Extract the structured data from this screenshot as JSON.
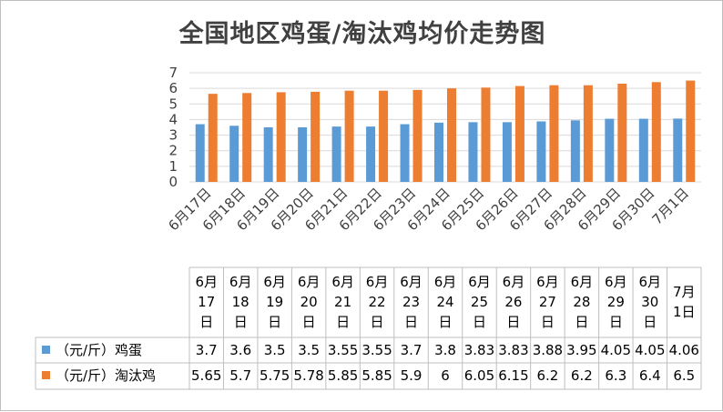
{
  "chart_data": {
    "type": "bar",
    "title": "全国地区鸡蛋/淘汰鸡均价走势图",
    "ylim": [
      0,
      7
    ],
    "yticks": [
      0,
      1,
      2,
      3,
      4,
      5,
      6,
      7
    ],
    "grid": true,
    "legend": "bottom-table",
    "categories": [
      "6月17日",
      "6月18日",
      "6月19日",
      "6月20日",
      "6月21日",
      "6月22日",
      "6月23日",
      "6月24日",
      "6月25日",
      "6月26日",
      "6月27日",
      "6月28日",
      "6月29日",
      "6月30日",
      "7月1日"
    ],
    "table_headers": [
      [
        "6月",
        "17",
        "日"
      ],
      [
        "6月",
        "18",
        "日"
      ],
      [
        "6月",
        "19",
        "日"
      ],
      [
        "6月",
        "20",
        "日"
      ],
      [
        "6月",
        "21",
        "日"
      ],
      [
        "6月",
        "22",
        "日"
      ],
      [
        "6月",
        "23",
        "日"
      ],
      [
        "6月",
        "24",
        "日"
      ],
      [
        "6月",
        "25",
        "日"
      ],
      [
        "6月",
        "26",
        "日"
      ],
      [
        "6月",
        "27",
        "日"
      ],
      [
        "6月",
        "28",
        "日"
      ],
      [
        "6月",
        "29",
        "日"
      ],
      [
        "6月",
        "30",
        "日"
      ],
      [
        "7月",
        "1日"
      ]
    ],
    "series": [
      {
        "name": "（元/斤）鸡蛋",
        "color": "#5b9bd5",
        "values": [
          3.7,
          3.6,
          3.5,
          3.5,
          3.55,
          3.55,
          3.7,
          3.8,
          3.83,
          3.83,
          3.88,
          3.95,
          4.05,
          4.05,
          4.06
        ]
      },
      {
        "name": "（元/斤）淘汰鸡",
        "color": "#ed7d31",
        "values": [
          5.65,
          5.7,
          5.75,
          5.78,
          5.85,
          5.85,
          5.9,
          6,
          6.05,
          6.15,
          6.2,
          6.2,
          6.3,
          6.4,
          6.5
        ]
      }
    ]
  }
}
